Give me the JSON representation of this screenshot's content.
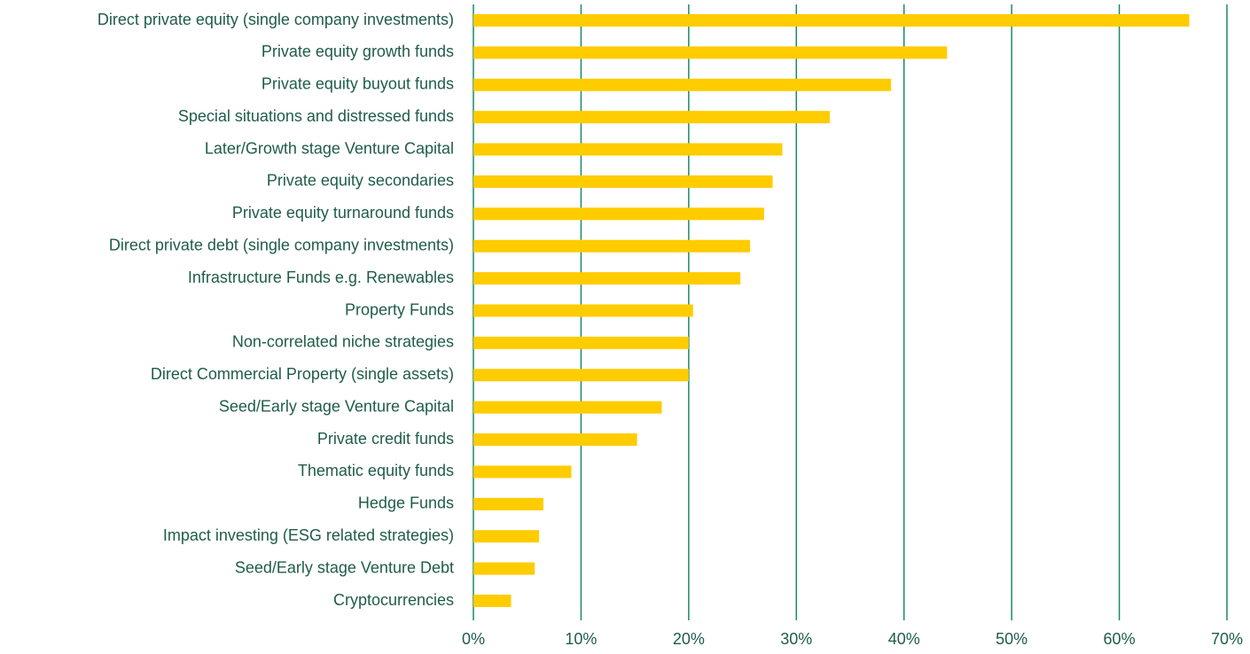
{
  "chart_data": {
    "type": "barh",
    "categories": [
      "Direct private equity (single company investments)",
      "Private equity growth funds",
      "Private equity buyout funds",
      "Special situations and distressed funds",
      "Later/Growth stage Venture Capital",
      "Private equity secondaries",
      "Private equity turnaround funds",
      "Direct private debt (single company investments)",
      "Infrastructure Funds e.g. Renewables",
      "Property Funds",
      "Non-correlated niche strategies",
      "Direct Commercial Property (single assets)",
      "Seed/Early stage Venture Capital",
      "Private credit funds",
      "Thematic equity funds",
      "Hedge Funds",
      "Impact investing (ESG related strategies)",
      "Seed/Early stage Venture Debt",
      "Cryptocurrencies"
    ],
    "values": [
      66.5,
      44.0,
      38.8,
      33.1,
      28.7,
      27.8,
      27.0,
      25.7,
      24.8,
      20.4,
      20.0,
      20.0,
      17.5,
      15.2,
      9.1,
      6.5,
      6.1,
      5.7,
      3.5
    ],
    "color": "#ffcc00",
    "xlim": [
      0,
      70
    ],
    "xticks": [
      {
        "value": 0,
        "label": "0%"
      },
      {
        "value": 10,
        "label": "10%"
      },
      {
        "value": 20,
        "label": "20%"
      },
      {
        "value": 30,
        "label": "30%"
      },
      {
        "value": 40,
        "label": "40%"
      },
      {
        "value": 50,
        "label": "50%"
      },
      {
        "value": 60,
        "label": "60%"
      },
      {
        "value": 70,
        "label": "70%"
      }
    ],
    "grid": true
  }
}
